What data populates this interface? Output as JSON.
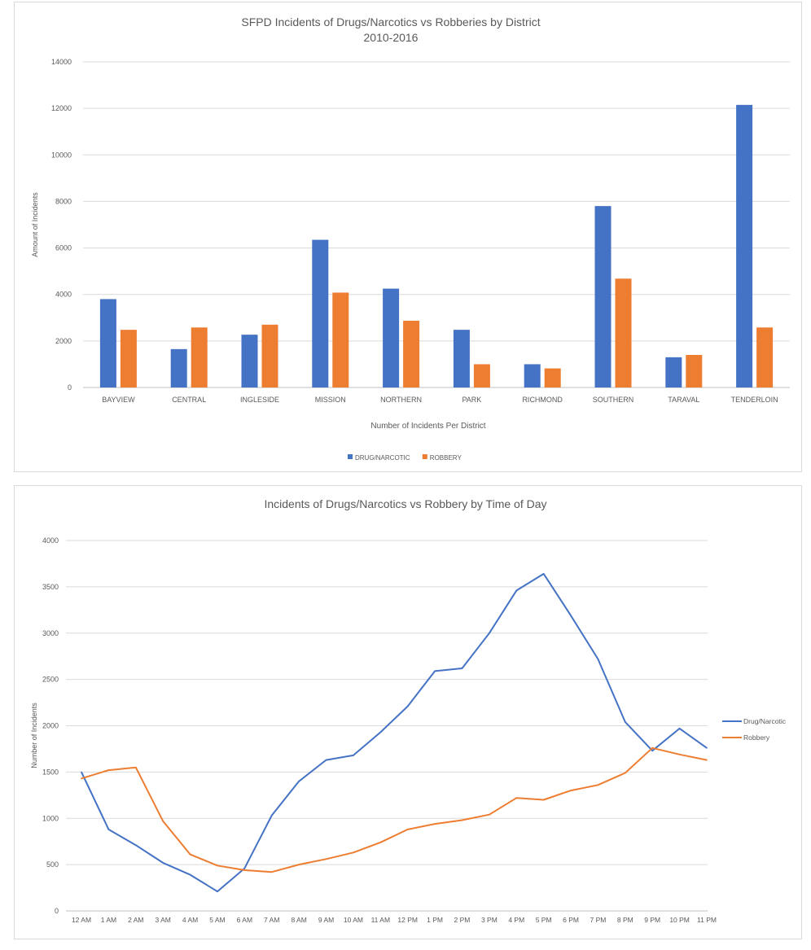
{
  "chart_data": [
    {
      "type": "bar",
      "title": "SFPD Incidents of Drugs/Narcotics vs Robberies by District",
      "subtitle": "2010-2016",
      "xlabel": "Number of Incidents Per District",
      "ylabel": "Amount of Incidents",
      "ylim": [
        0,
        14000
      ],
      "yticks": [
        0,
        2000,
        4000,
        6000,
        8000,
        10000,
        12000,
        14000
      ],
      "grid": true,
      "legend_position": "bottom",
      "categories": [
        "BAYVIEW",
        "CENTRAL",
        "INGLESIDE",
        "MISSION",
        "NORTHERN",
        "PARK",
        "RICHMOND",
        "SOUTHERN",
        "TARAVAL",
        "TENDERLOIN"
      ],
      "series": [
        {
          "name": "DRUG/NARCOTIC",
          "color": "#4472c4",
          "values": [
            3800,
            1650,
            2270,
            6350,
            4250,
            2480,
            1000,
            7800,
            1300,
            12150
          ]
        },
        {
          "name": "ROBBERY",
          "color": "#ed7d31",
          "values": [
            2480,
            2580,
            2700,
            4080,
            2870,
            1000,
            820,
            4680,
            1400,
            2580
          ]
        }
      ]
    },
    {
      "type": "line",
      "title": "Incidents of Drugs/Narcotics vs Robbery by Time of Day",
      "xlabel": "",
      "ylabel": "Number of Incidents",
      "ylim": [
        0,
        4000
      ],
      "yticks": [
        0,
        500,
        1000,
        1500,
        2000,
        2500,
        3000,
        3500,
        4000
      ],
      "grid": true,
      "legend_position": "right",
      "x": [
        "12 AM",
        "1 AM",
        "2 AM",
        "3 AM",
        "4 AM",
        "5 AM",
        "6 AM",
        "7 AM",
        "8 AM",
        "9 AM",
        "10 AM",
        "11 AM",
        "12 PM",
        "1 PM",
        "2 PM",
        "3 PM",
        "4 PM",
        "5 PM",
        "6 PM",
        "7 PM",
        "8 PM",
        "9 PM",
        "10 PM",
        "11 PM"
      ],
      "series": [
        {
          "name": "Drug/Narcotic",
          "color": "#4472c4",
          "values": [
            1500,
            880,
            710,
            520,
            390,
            210,
            460,
            1030,
            1400,
            1630,
            1680,
            1930,
            2210,
            2590,
            2620,
            3000,
            3460,
            3640,
            3190,
            2720,
            2040,
            1730,
            1970,
            1760
          ]
        },
        {
          "name": "Robbery",
          "color": "#ed7d31",
          "values": [
            1430,
            1520,
            1550,
            970,
            610,
            490,
            440,
            420,
            500,
            560,
            630,
            740,
            880,
            940,
            980,
            1040,
            1220,
            1200,
            1300,
            1360,
            1490,
            1760,
            1690,
            1630
          ]
        }
      ]
    }
  ]
}
